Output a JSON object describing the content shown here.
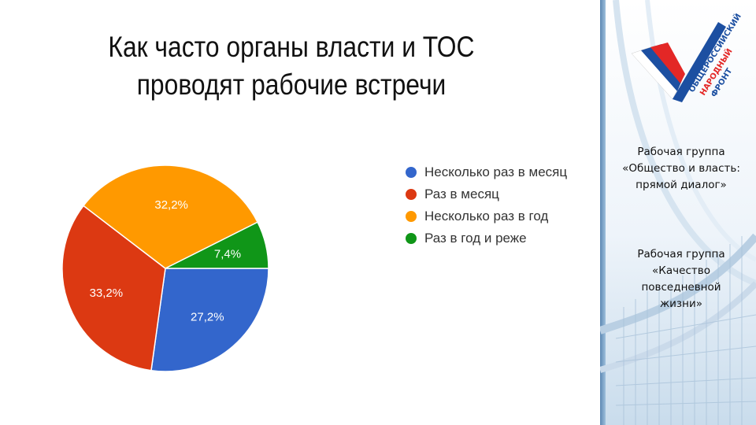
{
  "slide": {
    "title_line1": "Как часто органы власти и ТОС",
    "title_line2": "проводят рабочие встречи"
  },
  "chart_data": {
    "type": "pie",
    "slices": [
      {
        "label": "Несколько раз в месяц",
        "value": 27.2,
        "display": "27,2%",
        "color": "#3366cc"
      },
      {
        "label": "Раз в месяц",
        "value": 33.2,
        "display": "33,2%",
        "color": "#dc3912"
      },
      {
        "label": "Несколько раз в год",
        "value": 32.2,
        "display": "32,2%",
        "color": "#ff9900"
      },
      {
        "label": "Раз в год и реже",
        "value": 7.4,
        "display": "7,4%",
        "color": "#109618"
      }
    ],
    "legend_position": "right",
    "start_angle_deg": 90
  },
  "sidebar": {
    "logo_text": "ОБЩЕРОССИЙСКИЙ НАРОДНЫЙ ФРОНТ",
    "group1_label": "Рабочая группа",
    "group1_name": "«Общество и власть: прямой диалог»",
    "group2_label": "Рабочая группа",
    "group2_name": "«Качество повседневной жизни»"
  }
}
